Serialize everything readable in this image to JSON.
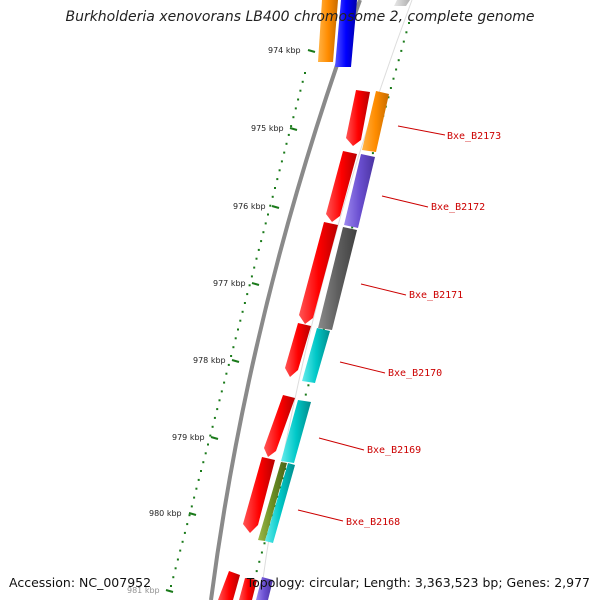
{
  "header": {
    "title": "Burkholderia xenovorans LB400 chromosome 2, complete genome"
  },
  "footer": {
    "accession": "Accession: NC_007952",
    "summary": "Topology: circular; Length: 3,363,523 bp; Genes: 2,977"
  },
  "scale": {
    "ticks": [
      {
        "kbp": 974,
        "label": "974 kbp"
      },
      {
        "kbp": 975,
        "label": "975 kbp"
      },
      {
        "kbp": 976,
        "label": "976 kbp"
      },
      {
        "kbp": 977,
        "label": "977 kbp"
      },
      {
        "kbp": 978,
        "label": "978 kbp"
      },
      {
        "kbp": 979,
        "label": "979 kbp"
      },
      {
        "kbp": 980,
        "label": "980 kbp"
      },
      {
        "kbp": 981,
        "label": "981 kbp"
      }
    ]
  },
  "genes": [
    {
      "locus": "Bxe_B2173",
      "cog_color": "#ff8c00"
    },
    {
      "locus": "Bxe_B2172",
      "cog_color": "#6a4fd0"
    },
    {
      "locus": "Bxe_B2171",
      "cog_color": "#5f5f5f"
    },
    {
      "locus": "Bxe_B2170",
      "cog_color": "#00c8c8"
    },
    {
      "locus": "Bxe_B2169",
      "cog_color": "#00c8c8"
    },
    {
      "locus": "Bxe_B2168",
      "cog_color": "#00c8c8"
    }
  ],
  "colors": {
    "cds_strand": "#ff0000",
    "backbone": "#808080",
    "gc_skew": "#1a7a1a",
    "cog_orange": "#ff8c00",
    "cog_blue": "#0000ff",
    "cog_purple": "#6a4fd0",
    "cog_gray": "#5f5f5f",
    "cog_cyan": "#00c8c8",
    "cog_olive": "#6b8e23"
  }
}
